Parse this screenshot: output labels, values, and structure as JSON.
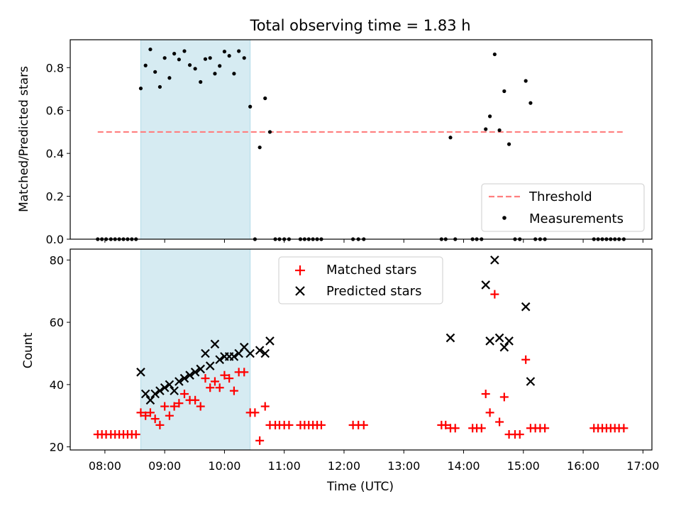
{
  "title": "Total observing time = 1.83 h",
  "colors": {
    "shade": "#add8e6",
    "threshold": "#ff7f7f",
    "matched": "#ff0000",
    "predicted": "#000000",
    "measurement": "#000000"
  },
  "chart_data": [
    {
      "type": "scatter",
      "panel": "top",
      "ylabel": "Matched/Predicted stars",
      "xlim": [
        7.42,
        17.15
      ],
      "ylim": [
        0,
        0.93
      ],
      "yticks": [
        0.0,
        0.2,
        0.4,
        0.6,
        0.8
      ],
      "ytick_labels": [
        "0.0",
        "0.2",
        "0.4",
        "0.6",
        "0.8"
      ],
      "grid": false,
      "legend": "bottom-right",
      "shaded_span": [
        8.6,
        10.43
      ],
      "threshold": {
        "name": "Threshold",
        "y": 0.5,
        "x_range": [
          7.88,
          16.7
        ]
      },
      "series": [
        {
          "name": "Measurements",
          "marker": "dot",
          "points": [
            [
              7.88,
              0
            ],
            [
              7.95,
              0
            ],
            [
              8.02,
              0
            ],
            [
              8.1,
              0
            ],
            [
              8.17,
              0
            ],
            [
              8.24,
              0
            ],
            [
              8.31,
              0
            ],
            [
              8.38,
              0
            ],
            [
              8.45,
              0
            ],
            [
              8.52,
              0
            ],
            [
              8.6,
              0.703
            ],
            [
              8.68,
              0.81
            ],
            [
              8.76,
              0.885
            ],
            [
              8.84,
              0.78
            ],
            [
              8.92,
              0.71
            ],
            [
              9.0,
              0.845
            ],
            [
              9.08,
              0.752
            ],
            [
              9.16,
              0.865
            ],
            [
              9.24,
              0.838
            ],
            [
              9.33,
              0.877
            ],
            [
              9.42,
              0.812
            ],
            [
              9.51,
              0.795
            ],
            [
              9.6,
              0.733
            ],
            [
              9.68,
              0.84
            ],
            [
              9.76,
              0.845
            ],
            [
              9.84,
              0.772
            ],
            [
              9.92,
              0.808
            ],
            [
              10.0,
              0.875
            ],
            [
              10.08,
              0.855
            ],
            [
              10.16,
              0.772
            ],
            [
              10.24,
              0.877
            ],
            [
              10.33,
              0.845
            ],
            [
              10.43,
              0.618
            ],
            [
              10.51,
              0
            ],
            [
              10.59,
              0.428
            ],
            [
              10.68,
              0.657
            ],
            [
              10.76,
              0.5
            ],
            [
              10.85,
              0
            ],
            [
              10.92,
              0
            ],
            [
              11.0,
              0
            ],
            [
              11.08,
              0
            ],
            [
              11.27,
              0
            ],
            [
              11.34,
              0
            ],
            [
              11.41,
              0
            ],
            [
              11.48,
              0
            ],
            [
              11.55,
              0
            ],
            [
              11.62,
              0
            ],
            [
              12.15,
              0
            ],
            [
              12.24,
              0
            ],
            [
              12.33,
              0
            ],
            [
              13.63,
              0
            ],
            [
              13.7,
              0
            ],
            [
              13.78,
              0.474
            ],
            [
              13.86,
              0
            ],
            [
              14.15,
              0
            ],
            [
              14.22,
              0
            ],
            [
              14.3,
              0
            ],
            [
              14.37,
              0.513
            ],
            [
              14.44,
              0.573
            ],
            [
              14.52,
              0.862
            ],
            [
              14.6,
              0.508
            ],
            [
              14.68,
              0.69
            ],
            [
              14.76,
              0.443
            ],
            [
              14.86,
              0
            ],
            [
              14.94,
              0
            ],
            [
              15.04,
              0.738
            ],
            [
              15.12,
              0.635
            ],
            [
              15.2,
              0
            ],
            [
              15.28,
              0
            ],
            [
              15.36,
              0
            ],
            [
              16.18,
              0
            ],
            [
              16.25,
              0
            ],
            [
              16.32,
              0
            ],
            [
              16.39,
              0
            ],
            [
              16.46,
              0
            ],
            [
              16.53,
              0
            ],
            [
              16.6,
              0
            ],
            [
              16.68,
              0
            ]
          ]
        }
      ]
    },
    {
      "type": "scatter",
      "panel": "bottom",
      "xlabel": "Time (UTC)",
      "ylabel": "Count",
      "xlim": [
        7.42,
        17.15
      ],
      "ylim": [
        19,
        83.5
      ],
      "xticks": [
        8,
        9,
        10,
        11,
        12,
        13,
        14,
        15,
        16,
        17
      ],
      "xtick_labels": [
        "08:00",
        "09:00",
        "10:00",
        "11:00",
        "12:00",
        "13:00",
        "14:00",
        "15:00",
        "16:00",
        "17:00"
      ],
      "yticks": [
        20,
        40,
        60,
        80
      ],
      "ytick_labels": [
        "20",
        "40",
        "60",
        "80"
      ],
      "grid": false,
      "legend": "top-center",
      "shaded_span": [
        8.6,
        10.43
      ],
      "series": [
        {
          "name": "Matched stars",
          "marker": "plus",
          "points": [
            [
              7.88,
              24
            ],
            [
              7.95,
              24
            ],
            [
              8.02,
              24
            ],
            [
              8.1,
              24
            ],
            [
              8.17,
              24
            ],
            [
              8.24,
              24
            ],
            [
              8.31,
              24
            ],
            [
              8.38,
              24
            ],
            [
              8.45,
              24
            ],
            [
              8.52,
              24
            ],
            [
              8.6,
              31
            ],
            [
              8.68,
              30
            ],
            [
              8.76,
              31
            ],
            [
              8.84,
              29
            ],
            [
              8.92,
              27
            ],
            [
              9.0,
              33
            ],
            [
              9.08,
              30
            ],
            [
              9.16,
              33
            ],
            [
              9.24,
              34
            ],
            [
              9.33,
              37
            ],
            [
              9.42,
              35
            ],
            [
              9.51,
              35
            ],
            [
              9.6,
              33
            ],
            [
              9.68,
              42
            ],
            [
              9.76,
              39
            ],
            [
              9.84,
              41
            ],
            [
              9.92,
              39
            ],
            [
              10.0,
              43
            ],
            [
              10.08,
              42
            ],
            [
              10.16,
              38
            ],
            [
              10.24,
              44
            ],
            [
              10.33,
              44
            ],
            [
              10.43,
              31
            ],
            [
              10.51,
              31
            ],
            [
              10.59,
              22
            ],
            [
              10.68,
              33
            ],
            [
              10.76,
              27
            ],
            [
              10.85,
              27
            ],
            [
              10.92,
              27
            ],
            [
              11.0,
              27
            ],
            [
              11.08,
              27
            ],
            [
              11.27,
              27
            ],
            [
              11.34,
              27
            ],
            [
              11.41,
              27
            ],
            [
              11.48,
              27
            ],
            [
              11.55,
              27
            ],
            [
              11.62,
              27
            ],
            [
              12.15,
              27
            ],
            [
              12.24,
              27
            ],
            [
              12.33,
              27
            ],
            [
              13.63,
              27
            ],
            [
              13.7,
              27
            ],
            [
              13.78,
              26
            ],
            [
              13.86,
              26
            ],
            [
              14.15,
              26
            ],
            [
              14.22,
              26
            ],
            [
              14.3,
              26
            ],
            [
              14.37,
              37
            ],
            [
              14.44,
              31
            ],
            [
              14.52,
              69
            ],
            [
              14.6,
              28
            ],
            [
              14.68,
              36
            ],
            [
              14.76,
              24
            ],
            [
              14.86,
              24
            ],
            [
              14.94,
              24
            ],
            [
              15.04,
              48
            ],
            [
              15.12,
              26
            ],
            [
              15.2,
              26
            ],
            [
              15.28,
              26
            ],
            [
              15.36,
              26
            ],
            [
              16.18,
              26
            ],
            [
              16.25,
              26
            ],
            [
              16.32,
              26
            ],
            [
              16.39,
              26
            ],
            [
              16.46,
              26
            ],
            [
              16.53,
              26
            ],
            [
              16.6,
              26
            ],
            [
              16.68,
              26
            ]
          ]
        },
        {
          "name": "Predicted stars",
          "marker": "x",
          "points": [
            [
              8.6,
              44
            ],
            [
              8.68,
              37
            ],
            [
              8.76,
              35
            ],
            [
              8.84,
              37
            ],
            [
              8.92,
              38
            ],
            [
              9.0,
              39
            ],
            [
              9.08,
              40
            ],
            [
              9.16,
              38
            ],
            [
              9.24,
              41
            ],
            [
              9.33,
              42
            ],
            [
              9.42,
              43
            ],
            [
              9.51,
              44
            ],
            [
              9.6,
              45
            ],
            [
              9.68,
              50
            ],
            [
              9.76,
              46
            ],
            [
              9.84,
              53
            ],
            [
              9.92,
              48
            ],
            [
              10.0,
              49
            ],
            [
              10.08,
              49
            ],
            [
              10.16,
              49
            ],
            [
              10.24,
              50
            ],
            [
              10.33,
              52
            ],
            [
              10.43,
              50
            ],
            [
              10.59,
              51
            ],
            [
              10.68,
              50
            ],
            [
              10.76,
              54
            ],
            [
              13.78,
              55
            ],
            [
              14.37,
              72
            ],
            [
              14.44,
              54
            ],
            [
              14.52,
              80
            ],
            [
              14.6,
              55
            ],
            [
              14.68,
              52
            ],
            [
              14.76,
              54
            ],
            [
              15.04,
              65
            ],
            [
              15.12,
              41
            ]
          ]
        }
      ]
    }
  ]
}
